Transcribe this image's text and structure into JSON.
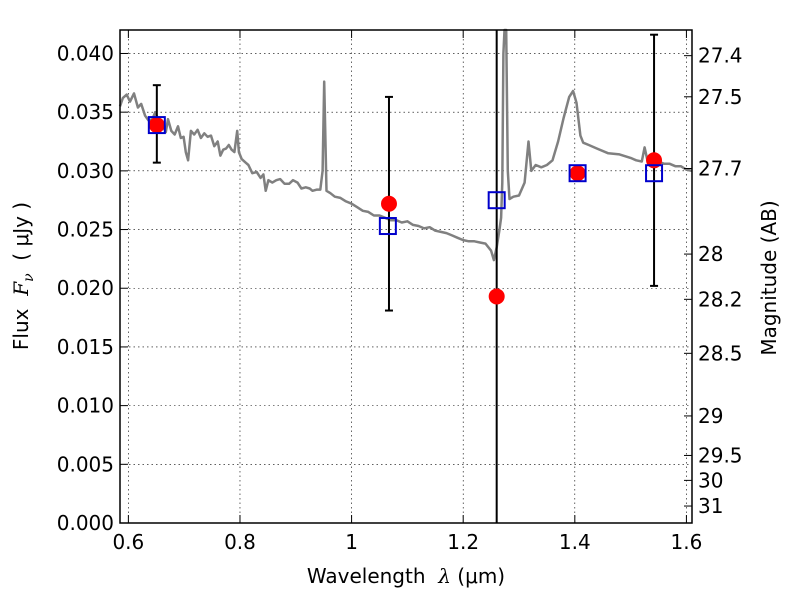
{
  "chart_data": {
    "type": "scatter",
    "xlabel": {
      "prefix": "Wavelength",
      "symbol": "λ",
      "unit": "(μm)"
    },
    "ylabel_left": {
      "prefix": "Flux",
      "symbol": "F",
      "subscript": "ν",
      "unit": "( μJy )"
    },
    "ylabel_right": "Magnitude (AB)",
    "xlim": [
      0.585,
      1.61
    ],
    "ylim": [
      0.0,
      0.042
    ],
    "grid": true,
    "x_ticks": [
      {
        "value": 0.6,
        "label": "0.6"
      },
      {
        "value": 0.8,
        "label": "0.8"
      },
      {
        "value": 1.0,
        "label": "1"
      },
      {
        "value": 1.2,
        "label": "1.2"
      },
      {
        "value": 1.4,
        "label": "1.4"
      },
      {
        "value": 1.6,
        "label": "1.6"
      }
    ],
    "y_ticks": [
      {
        "value": 0.0,
        "label": "0.000"
      },
      {
        "value": 0.005,
        "label": "0.005"
      },
      {
        "value": 0.01,
        "label": "0.010"
      },
      {
        "value": 0.015,
        "label": "0.015"
      },
      {
        "value": 0.02,
        "label": "0.020"
      },
      {
        "value": 0.025,
        "label": "0.025"
      },
      {
        "value": 0.03,
        "label": "0.030"
      },
      {
        "value": 0.035,
        "label": "0.035"
      },
      {
        "value": 0.04,
        "label": "0.040"
      }
    ],
    "magnitude_ticks": [
      {
        "value": 27.4,
        "label": "27.4"
      },
      {
        "value": 27.5,
        "label": "27.5"
      },
      {
        "value": 27.7,
        "label": "27.7"
      },
      {
        "value": 28.0,
        "label": "28"
      },
      {
        "value": 28.2,
        "label": "28.2"
      },
      {
        "value": 28.5,
        "label": "28.5"
      },
      {
        "value": 29.0,
        "label": "29"
      },
      {
        "value": 29.5,
        "label": "29.5"
      },
      {
        "value": 30.0,
        "label": "30"
      },
      {
        "value": 31.0,
        "label": "31"
      }
    ],
    "colors": {
      "model_line": "#808080",
      "observed": "#ff0000",
      "synthetic": "#0000cc",
      "errorbar": "#000000",
      "grid": "#000000"
    },
    "model_spectrum": [
      [
        0.585,
        0.0355
      ],
      [
        0.59,
        0.0362
      ],
      [
        0.597,
        0.0365
      ],
      [
        0.603,
        0.0359
      ],
      [
        0.61,
        0.0366
      ],
      [
        0.617,
        0.0354
      ],
      [
        0.623,
        0.0357
      ],
      [
        0.63,
        0.0347
      ],
      [
        0.636,
        0.0343
      ],
      [
        0.643,
        0.0344
      ],
      [
        0.648,
        0.035
      ],
      [
        0.655,
        0.0342
      ],
      [
        0.662,
        0.0338
      ],
      [
        0.667,
        0.0333
      ],
      [
        0.671,
        0.0344
      ],
      [
        0.677,
        0.0334
      ],
      [
        0.683,
        0.0331
      ],
      [
        0.689,
        0.0338
      ],
      [
        0.694,
        0.0328
      ],
      [
        0.699,
        0.0329
      ],
      [
        0.703,
        0.0316
      ],
      [
        0.707,
        0.0309
      ],
      [
        0.712,
        0.0334
      ],
      [
        0.718,
        0.0331
      ],
      [
        0.724,
        0.0335
      ],
      [
        0.73,
        0.0328
      ],
      [
        0.736,
        0.0332
      ],
      [
        0.742,
        0.0329
      ],
      [
        0.748,
        0.033
      ],
      [
        0.754,
        0.0321
      ],
      [
        0.76,
        0.0325
      ],
      [
        0.765,
        0.0313
      ],
      [
        0.77,
        0.0318
      ],
      [
        0.775,
        0.0319
      ],
      [
        0.78,
        0.0322
      ],
      [
        0.785,
        0.0318
      ],
      [
        0.79,
        0.0316
      ],
      [
        0.795,
        0.0334
      ],
      [
        0.798,
        0.0316
      ],
      [
        0.803,
        0.031
      ],
      [
        0.81,
        0.0307
      ],
      [
        0.815,
        0.0305
      ],
      [
        0.822,
        0.0298
      ],
      [
        0.83,
        0.0299
      ],
      [
        0.837,
        0.0294
      ],
      [
        0.842,
        0.0297
      ],
      [
        0.846,
        0.0283
      ],
      [
        0.851,
        0.0292
      ],
      [
        0.858,
        0.029
      ],
      [
        0.865,
        0.0292
      ],
      [
        0.872,
        0.0293
      ],
      [
        0.88,
        0.0289
      ],
      [
        0.888,
        0.0289
      ],
      [
        0.895,
        0.0292
      ],
      [
        0.903,
        0.029
      ],
      [
        0.91,
        0.0285
      ],
      [
        0.918,
        0.0286
      ],
      [
        0.925,
        0.0285
      ],
      [
        0.93,
        0.0283
      ],
      [
        0.938,
        0.0284
      ],
      [
        0.944,
        0.0284
      ],
      [
        0.948,
        0.03
      ],
      [
        0.951,
        0.0376
      ],
      [
        0.955,
        0.0283
      ],
      [
        0.962,
        0.0281
      ],
      [
        0.97,
        0.0278
      ],
      [
        0.98,
        0.0277
      ],
      [
        0.99,
        0.0274
      ],
      [
        1.0,
        0.0272
      ],
      [
        1.01,
        0.0269
      ],
      [
        1.02,
        0.0266
      ],
      [
        1.03,
        0.0265
      ],
      [
        1.04,
        0.0262
      ],
      [
        1.05,
        0.0262
      ],
      [
        1.06,
        0.026
      ],
      [
        1.07,
        0.0258
      ],
      [
        1.08,
        0.0258
      ],
      [
        1.09,
        0.0256
      ],
      [
        1.1,
        0.0257
      ],
      [
        1.11,
        0.0254
      ],
      [
        1.12,
        0.0253
      ],
      [
        1.13,
        0.0251
      ],
      [
        1.14,
        0.0252
      ],
      [
        1.15,
        0.0249
      ],
      [
        1.16,
        0.0248
      ],
      [
        1.17,
        0.0247
      ],
      [
        1.18,
        0.0245
      ],
      [
        1.19,
        0.0243
      ],
      [
        1.2,
        0.0241
      ],
      [
        1.21,
        0.024
      ],
      [
        1.22,
        0.024
      ],
      [
        1.23,
        0.0239
      ],
      [
        1.24,
        0.0238
      ],
      [
        1.25,
        0.0232
      ],
      [
        1.255,
        0.0224
      ],
      [
        1.26,
        0.0235
      ],
      [
        1.265,
        0.025
      ],
      [
        1.268,
        0.026
      ],
      [
        1.27,
        0.029
      ],
      [
        1.272,
        0.04
      ],
      [
        1.274,
        0.042
      ],
      [
        1.277,
        0.042
      ],
      [
        1.28,
        0.03
      ],
      [
        1.283,
        0.0276
      ],
      [
        1.29,
        0.0278
      ],
      [
        1.3,
        0.0279
      ],
      [
        1.31,
        0.029
      ],
      [
        1.317,
        0.0325
      ],
      [
        1.322,
        0.03
      ],
      [
        1.33,
        0.0305
      ],
      [
        1.34,
        0.0303
      ],
      [
        1.35,
        0.0305
      ],
      [
        1.36,
        0.0309
      ],
      [
        1.37,
        0.0325
      ],
      [
        1.38,
        0.0345
      ],
      [
        1.39,
        0.0363
      ],
      [
        1.397,
        0.0368
      ],
      [
        1.403,
        0.0358
      ],
      [
        1.41,
        0.033
      ],
      [
        1.415,
        0.0324
      ],
      [
        1.425,
        0.0322
      ],
      [
        1.44,
        0.0319
      ],
      [
        1.46,
        0.0315
      ],
      [
        1.48,
        0.0314
      ],
      [
        1.5,
        0.0311
      ],
      [
        1.51,
        0.0309
      ],
      [
        1.52,
        0.0308
      ],
      [
        1.525,
        0.032
      ],
      [
        1.53,
        0.0309
      ],
      [
        1.54,
        0.0309
      ],
      [
        1.55,
        0.0308
      ],
      [
        1.56,
        0.0306
      ],
      [
        1.57,
        0.0306
      ],
      [
        1.58,
        0.0304
      ],
      [
        1.59,
        0.0304
      ],
      [
        1.6,
        0.0301
      ],
      [
        1.61,
        0.03
      ]
    ],
    "observed_points": [
      {
        "x": 0.651,
        "y": 0.0339,
        "yerr_low": 0.0307,
        "yerr_high": 0.0373
      },
      {
        "x": 1.067,
        "y": 0.0272,
        "yerr_low": 0.0181,
        "yerr_high": 0.0363
      },
      {
        "x": 1.26,
        "y": 0.0193,
        "yerr_low": 0.0,
        "yerr_high": 0.042
      },
      {
        "x": 1.405,
        "y": 0.0298,
        "yerr_low": null,
        "yerr_high": null
      },
      {
        "x": 1.542,
        "y": 0.0309,
        "yerr_low": 0.0202,
        "yerr_high": 0.0416
      }
    ],
    "synthetic_points": [
      {
        "x": 0.651,
        "y": 0.0339
      },
      {
        "x": 1.065,
        "y": 0.0253
      },
      {
        "x": 1.26,
        "y": 0.0275
      },
      {
        "x": 1.405,
        "y": 0.0298
      },
      {
        "x": 1.542,
        "y": 0.0298
      }
    ]
  }
}
